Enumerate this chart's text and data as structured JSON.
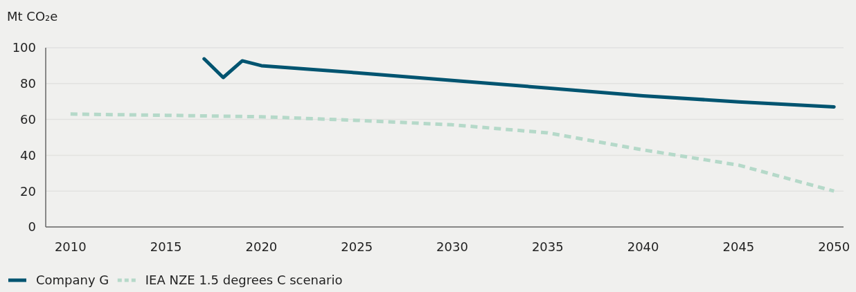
{
  "chart_data": {
    "type": "line",
    "ylabel": "Mt CO₂e",
    "xlim": [
      2008.7,
      2050.5
    ],
    "xticks": [
      2010,
      2015,
      2020,
      2025,
      2030,
      2035,
      2040,
      2045,
      2050
    ],
    "ylim": [
      0,
      100
    ],
    "yticks": [
      0,
      20,
      40,
      60,
      80,
      100
    ],
    "grid": "y",
    "legend": "bottom left",
    "series": [
      {
        "name": "Company G",
        "color": "#005470",
        "line_style": "solid",
        "x": [
          2017,
          2018,
          2019,
          2020,
          2025,
          2030,
          2035,
          2040,
          2045,
          2050
        ],
        "values": [
          93.8,
          83.4,
          92.7,
          90,
          86,
          81.8,
          77.5,
          73.2,
          69.8,
          67
        ]
      },
      {
        "name": "IEA NZE 1.5 degrees C scenario",
        "color": "#b5d9c9",
        "line_style": "dashed",
        "x": [
          2010,
          2015,
          2020,
          2025,
          2030,
          2035,
          2040,
          2045,
          2050
        ],
        "values": [
          63,
          62.3,
          61.5,
          59.5,
          57,
          52.5,
          43,
          34.5,
          20
        ]
      }
    ]
  }
}
